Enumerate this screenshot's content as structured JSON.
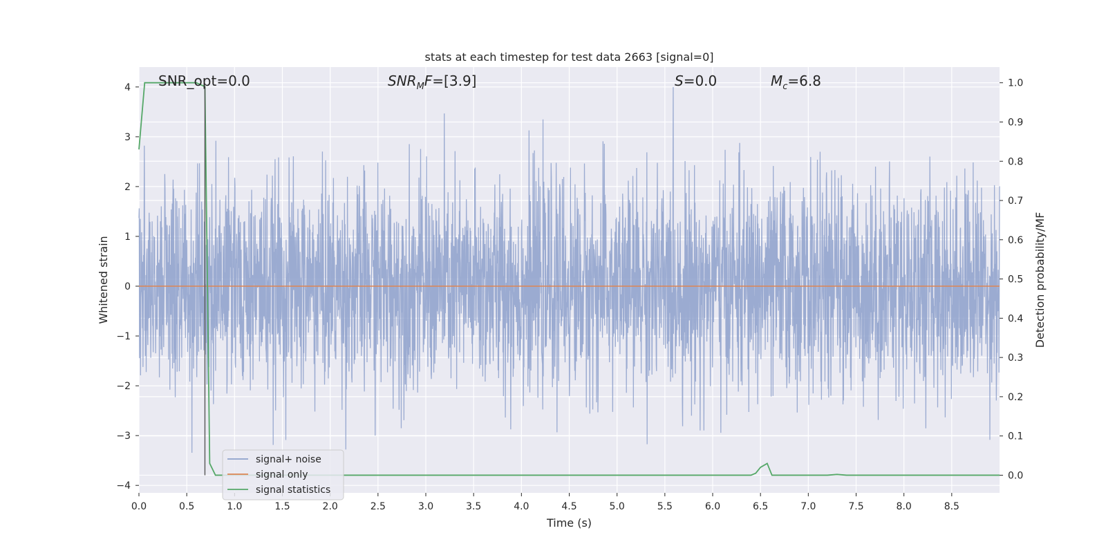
{
  "chart_data": {
    "type": "line",
    "title": "stats at each timestep for test data 2663 [signal=0]",
    "xlabel": "Time (s)",
    "ylabel": "Whitened strain",
    "y2label": "Detection probability/MF",
    "xlim": [
      0.0,
      9.0
    ],
    "ylim": [
      -4.15,
      4.4
    ],
    "y2lim": [
      -0.045,
      1.04
    ],
    "xticks": [
      "0.0",
      "0.5",
      "1.0",
      "1.5",
      "2.0",
      "2.5",
      "3.0",
      "3.5",
      "4.0",
      "4.5",
      "5.0",
      "5.5",
      "6.0",
      "6.5",
      "7.0",
      "7.5",
      "8.0",
      "8.5"
    ],
    "xtick_values": [
      0.0,
      0.5,
      1.0,
      1.5,
      2.0,
      2.5,
      3.0,
      3.5,
      4.0,
      4.5,
      5.0,
      5.5,
      6.0,
      6.5,
      7.0,
      7.5,
      8.0,
      8.5
    ],
    "yticks": [
      "−4",
      "−3",
      "−2",
      "−1",
      "0",
      "1",
      "2",
      "3",
      "4"
    ],
    "ytick_values": [
      -4,
      -3,
      -2,
      -1,
      0,
      1,
      2,
      3,
      4
    ],
    "y2ticks": [
      "0.0",
      "0.1",
      "0.2",
      "0.3",
      "0.4",
      "0.5",
      "0.6",
      "0.7",
      "0.8",
      "0.9",
      "1.0"
    ],
    "y2tick_values": [
      0.0,
      0.1,
      0.2,
      0.3,
      0.4,
      0.5,
      0.6,
      0.7,
      0.8,
      0.9,
      1.0
    ],
    "grid": true,
    "legend_position": "lower-left",
    "annotations": {
      "snr_opt": "SNR_opt=0.0",
      "snr_mf_main": "SNR",
      "snr_mf_sub": "M",
      "snr_mf_rest": "F=[3.9]",
      "s_main": "S",
      "s_rest": "=0.0",
      "mc_main": "M",
      "mc_sub": "c",
      "mc_rest": "=6.8"
    },
    "marker_line_x": 0.69,
    "series": [
      {
        "name": "signal+ noise",
        "color": "#8da0cb",
        "axis": "left",
        "description": "noise-like whitened strain, amplitude mostly within ±2, peaks near ±3 to ±4",
        "envelope": {
          "typical_abs": 1.6,
          "peak_abs": 3.5,
          "max_value": 4.0,
          "min_value": -3.8
        }
      },
      {
        "name": "signal only",
        "color": "#dd8452",
        "axis": "left",
        "x": [
          0.0,
          9.0
        ],
        "y": [
          0.0,
          0.0
        ]
      },
      {
        "name": "signal statistics",
        "color": "#55a868",
        "axis": "right",
        "x": [
          0.0,
          0.06,
          0.1,
          0.15,
          0.2,
          0.3,
          0.4,
          0.5,
          0.6,
          0.69,
          0.74,
          0.8,
          0.85,
          1.0,
          2.0,
          3.0,
          4.0,
          5.0,
          6.0,
          6.4,
          6.45,
          6.5,
          6.57,
          6.62,
          6.7,
          7.0,
          7.2,
          7.3,
          7.4,
          8.0,
          8.5,
          8.6,
          9.0
        ],
        "y": [
          0.83,
          1.0,
          1.0,
          1.0,
          1.0,
          1.0,
          1.0,
          1.0,
          1.0,
          0.99,
          0.03,
          0.0,
          0.0,
          0.0,
          0.0,
          0.0,
          0.0,
          0.0,
          0.0,
          0.0,
          0.005,
          0.02,
          0.03,
          0.0,
          0.0,
          0.0,
          0.0,
          0.002,
          0.0,
          0.0,
          0.0,
          0.0,
          0.0
        ]
      }
    ]
  },
  "colors": {
    "plot_background": "#eaeaf2",
    "grid": "#ffffff",
    "noise": "#8da0cb",
    "signal": "#dd8452",
    "statistics": "#55a868",
    "marker_line": "#555555"
  }
}
